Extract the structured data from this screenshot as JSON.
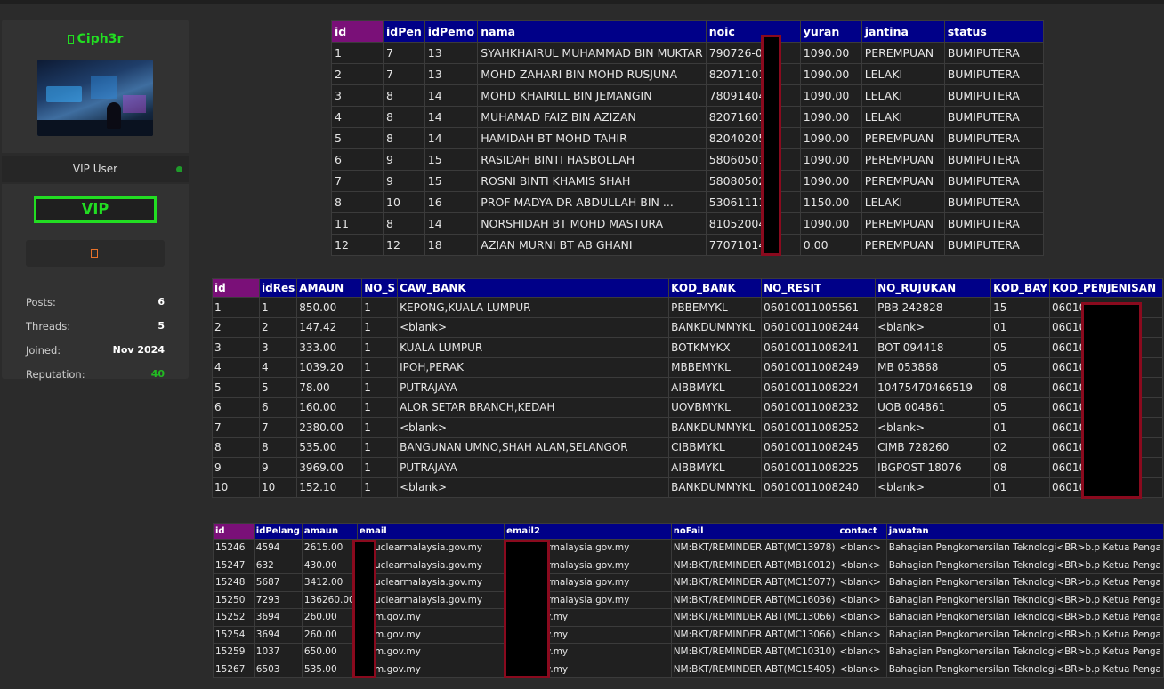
{
  "profile": {
    "username": "Ciph3r",
    "role": "VIP User",
    "badge": "VIP",
    "stats": [
      {
        "label": "Posts:",
        "value": "6"
      },
      {
        "label": "Threads:",
        "value": "5"
      },
      {
        "label": "Joined:",
        "value": "Nov 2024"
      },
      {
        "label": "Reputation:",
        "value": "40"
      }
    ],
    "colors": {
      "accent_green": "#22dd22",
      "award_orange": "#e8722a",
      "redaction_border": "#8a0a1e"
    }
  },
  "table1": {
    "headers": [
      "id",
      "idPen",
      "idPemo",
      "nama",
      "noic",
      "yuran",
      "jantina",
      "status"
    ],
    "rows": [
      [
        "1",
        "7",
        "13",
        "SYAHKHAIRUL MUHAMMAD BIN MUKTAR",
        "790726-01-",
        "1090.00",
        "PEREMPUAN",
        "BUMIPUTERA"
      ],
      [
        "2",
        "7",
        "13",
        "MOHD ZAHARI BIN MOHD RUSJUNA",
        "820711015",
        "1090.00",
        "LELAKI",
        "BUMIPUTERA"
      ],
      [
        "3",
        "8",
        "14",
        "MOHD KHAIRILL BIN JEMANGIN",
        "780914045",
        "1090.00",
        "LELAKI",
        "BUMIPUTERA"
      ],
      [
        "4",
        "8",
        "14",
        "MUHAMAD FAIZ BIN AZIZAN",
        "820716016",
        "1090.00",
        "LELAKI",
        "BUMIPUTERA"
      ],
      [
        "5",
        "8",
        "14",
        "HAMIDAH BT MOHD TAHIR",
        "820402055",
        "1090.00",
        "PEREMPUAN",
        "BUMIPUTERA"
      ],
      [
        "6",
        "9",
        "15",
        "RASIDAH BINTI HASBOLLAH",
        "580605015",
        "1090.00",
        "PEREMPUAN",
        "BUMIPUTERA"
      ],
      [
        "7",
        "9",
        "15",
        "ROSNI BINTI KHAMIS SHAH",
        "580805025",
        "1090.00",
        "PEREMPUAN",
        "BUMIPUTERA"
      ],
      [
        "8",
        "10",
        "16",
        "PROF MADYA DR ABDULLAH BIN ...",
        "530611115",
        "1150.00",
        "LELAKI",
        "BUMIPUTERA"
      ],
      [
        "11",
        "8",
        "14",
        "NORSHIDAH BT MOHD MASTURA",
        "810520045",
        "1090.00",
        "PEREMPUAN",
        "BUMIPUTERA"
      ],
      [
        "12",
        "12",
        "18",
        "AZIAN MURNI BT AB GHANI",
        "770710145",
        "0.00",
        "PEREMPUAN",
        "BUMIPUTERA"
      ]
    ]
  },
  "table2": {
    "headers": [
      "id",
      "idRes",
      "AMAUN",
      "NO_S",
      "CAW_BANK",
      "KOD_BANK",
      "NO_RESIT",
      "NO_RUJUKAN",
      "KOD_BAY",
      "KOD_PENJENISAN"
    ],
    "rows": [
      [
        "1",
        "1",
        "850.00",
        "1",
        "KEPONG,KUALA LUMPUR",
        "PBBEMYKL",
        "06010011005561",
        "PBB 242828",
        "15",
        "060100"
      ],
      [
        "2",
        "2",
        "147.42",
        "1",
        "<blank>",
        "BANKDUMMYKL",
        "06010011008244",
        "<blank>",
        "01",
        "060100"
      ],
      [
        "3",
        "3",
        "333.00",
        "1",
        "KUALA LUMPUR",
        "BOTKMYKX",
        "06010011008241",
        "BOT 094418",
        "05",
        "060100"
      ],
      [
        "4",
        "4",
        "1039.20",
        "1",
        "IPOH,PERAK",
        "MBBEMYKL",
        "06010011008249",
        "MB 053868",
        "05",
        "060100"
      ],
      [
        "5",
        "5",
        "78.00",
        "1",
        "PUTRAJAYA",
        "AIBBMYKL",
        "06010011008224",
        "10475470466519",
        "08",
        "060100"
      ],
      [
        "6",
        "6",
        "160.00",
        "1",
        "ALOR SETAR BRANCH,KEDAH",
        "UOVBMYKL",
        "06010011008232",
        "UOB 004861",
        "05",
        "060100"
      ],
      [
        "7",
        "7",
        "2380.00",
        "1",
        "<blank>",
        "BANKDUMMYKL",
        "06010011008252",
        "<blank>",
        "01",
        "060100"
      ],
      [
        "8",
        "8",
        "535.00",
        "1",
        "BANGUNAN UMNO,SHAH ALAM,SELANGOR",
        "CIBBMYKL",
        "06010011008245",
        "CIMB 728260",
        "02",
        "060100"
      ],
      [
        "9",
        "9",
        "3969.00",
        "1",
        "PUTRAJAYA",
        "AIBBMYKL",
        "06010011008225",
        "IBGPOST 18076",
        "08",
        "060100"
      ],
      [
        "10",
        "10",
        "152.10",
        "1",
        "<blank>",
        "BANKDUMMYKL",
        "06010011008240",
        "<blank>",
        "01",
        "060100"
      ]
    ]
  },
  "table3": {
    "headers": [
      "id",
      "idPelang",
      "amaun",
      "email",
      "email2",
      "noFail",
      "contact",
      "jawatan"
    ],
    "rows": [
      [
        "15246",
        "4594",
        "2615.00",
        "@nuclearmalaysia.gov.my",
        "@nuclearmalaysia.gov.my",
        "NM:BKT/REMINDER ABT(MC13978)",
        "<blank>",
        "Bahagian Pengkomersilan Teknologi<BR>b.p Ketua Penga"
      ],
      [
        "15247",
        "632",
        "430.00",
        "@nuclearmalaysia.gov.my",
        "@nuclearmalaysia.gov.my",
        "NM:BKT/REMINDER ABT(MB10012)",
        "<blank>",
        "Bahagian Pengkomersilan Teknologi<BR>b.p Ketua Penga"
      ],
      [
        "15248",
        "5687",
        "3412.00",
        "@nuclearmalaysia.gov.my",
        "@nuclearmalaysia.gov.my",
        "NM:BKT/REMINDER ABT(MC15077)",
        "<blank>",
        "Bahagian Pengkomersilan Teknologi<BR>b.p Ketua Penga"
      ],
      [
        "15250",
        "7293",
        "136260.00",
        "@nuclearmalaysia.gov.my",
        "@nuclearmalaysia.gov.my",
        "NM:BKT/REMINDER ABT(MC16036)",
        "<blank>",
        "Bahagian Pengkomersilan Teknologi<BR>b.p Ketua Penga"
      ],
      [
        "15252",
        "3694",
        "260.00",
        "@nm.gov.my",
        "@nm.gov.my",
        "NM:BKT/REMINDER ABT(MC13066)",
        "<blank>",
        "Bahagian Pengkomersilan Teknologi<BR>b.p Ketua Penga"
      ],
      [
        "15254",
        "3694",
        "260.00",
        "@nm.gov.my",
        "@nm.gov.my",
        "NM:BKT/REMINDER ABT(MC13066)",
        "<blank>",
        "Bahagian Pengkomersilan Teknologi<BR>b.p Ketua Penga"
      ],
      [
        "15259",
        "1037",
        "650.00",
        "@nm.gov.my",
        "@nm.gov.my",
        "NM:BKT/REMINDER ABT(MC10310)",
        "<blank>",
        "Bahagian Pengkomersilan Teknologi<BR>b.p Ketua Penga"
      ],
      [
        "15267",
        "6503",
        "535.00",
        "@nm.gov.my",
        "@nm.gov.my",
        "NM:BKT/REMINDER ABT(MC15405)",
        "<blank>",
        "Bahagian Pengkomersilan Teknologi<BR>b.p Ketua Penga"
      ]
    ]
  }
}
